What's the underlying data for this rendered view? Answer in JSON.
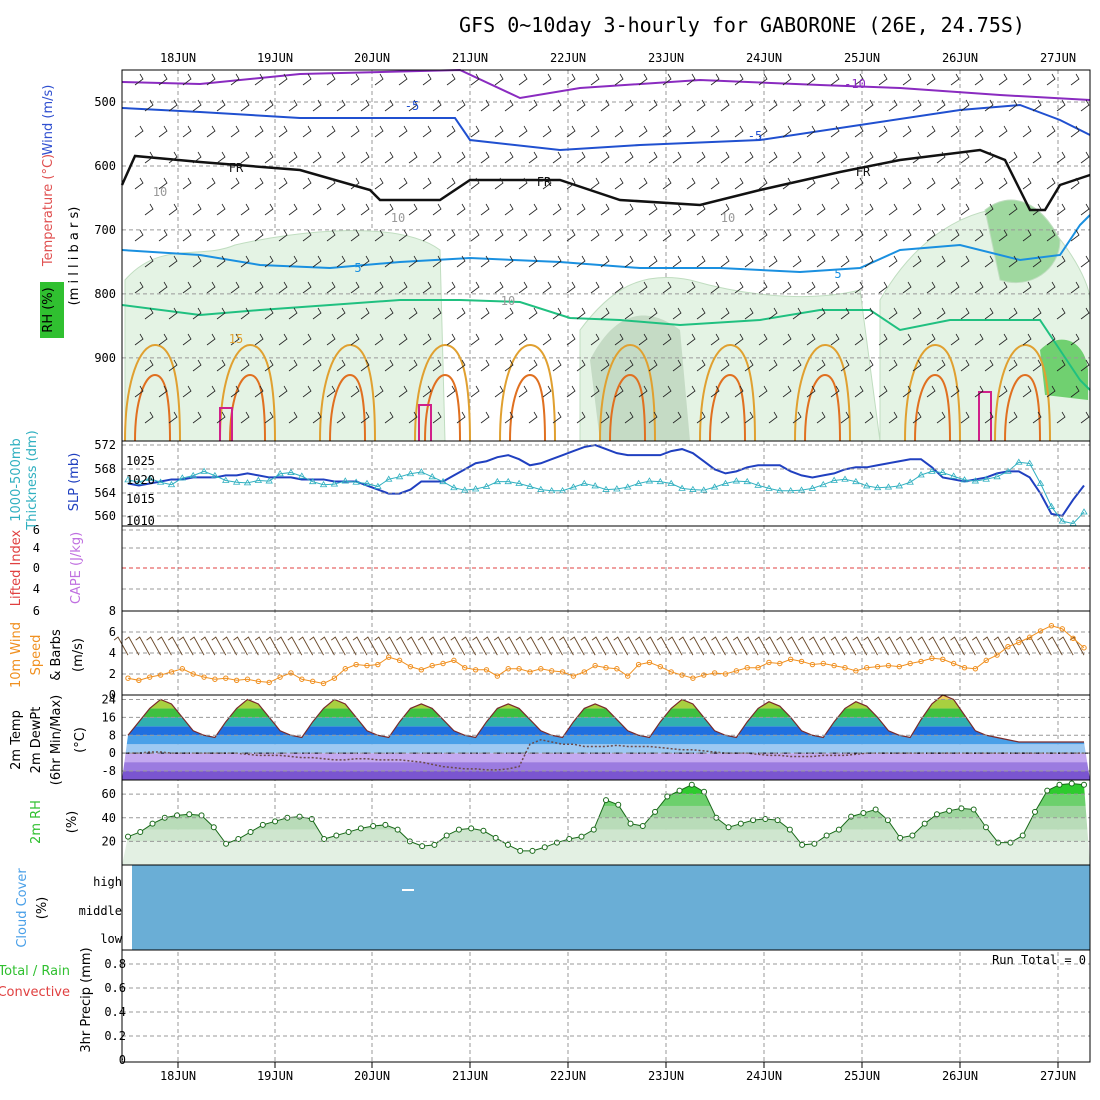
{
  "title": "GFS 0~10day 3-hourly for GABORONE (26E, 24.75S)",
  "date_labels": [
    "18JUN",
    "19JUN",
    "20JUN",
    "21JUN",
    "22JUN",
    "23JUN",
    "24JUN",
    "25JUN",
    "26JUN",
    "27JUN"
  ],
  "panel_labels": {
    "upper_wind": "Wind (m/s)",
    "upper_temp": "Temperature (°C)",
    "upper_rh": "RH (%)",
    "upper_units": "(m i l l i b a r s)",
    "thickness_1": "1000-500mb",
    "thickness_2": "Thickness (dm)",
    "slp": "SLP (mb)",
    "lifted": "Lifted Index",
    "cape": "CAPE (J/kg)",
    "wind10_1": "10m Wind",
    "wind10_2": "Speed",
    "wind10_3": "& Barbs",
    "wind10_units": "(m/s)",
    "temp_1": "2m Temp",
    "temp_2": "2m DewPt",
    "temp_3": "(6hr Min/Max)",
    "temp_units": "(°C)",
    "rh_1": "2m RH",
    "rh_units": "(%)",
    "cloud_1": "Cloud Cover",
    "cloud_units": "(%)",
    "precip_1": "Total / Rain",
    "precip_2": "Convective",
    "precip_3": "3hr Precip (mm)",
    "run_total": "Run Total = 0"
  },
  "colors": {
    "temp_label": "#e05050",
    "wind_label": "#3050d0",
    "rh_label": "#30c030",
    "thickness": "#30b0c0",
    "slp": "#2040c0",
    "lifted": "#e04040",
    "cape": "#c070e0",
    "wind10": "#f09020",
    "cloud": "#6aaed6",
    "precip_total": "#30c030",
    "precip_conv": "#e04040"
  },
  "chart_data": [
    {
      "type": "line",
      "name": "upper-air",
      "ylabel": "millibars",
      "yticks": [
        "500",
        "600",
        "700",
        "800",
        "900"
      ],
      "ylim": [
        1000,
        450
      ],
      "isotherm_labels": [
        "-10",
        "-5",
        "-5",
        "FR",
        "FR",
        "FR",
        "5",
        "5",
        "15",
        "10",
        "10",
        "10",
        "10"
      ]
    },
    {
      "type": "line",
      "name": "thickness-slp",
      "left_ticks": [
        "572",
        "568",
        "564",
        "560"
      ],
      "right_ticks": [
        "1025",
        "1020",
        "1015",
        "1010"
      ],
      "thickness": [
        566.6,
        566.2,
        566.8,
        566.2,
        565.8,
        566.9,
        567.3,
        568.0,
        567.3,
        566.5,
        566.2,
        566.1,
        566.5,
        566.4,
        567.6,
        567.8,
        567.2,
        566.3,
        565.8,
        565.9,
        566.4,
        566.2,
        566.0,
        565.5,
        566.7,
        567.1,
        567.6,
        567.9,
        567.1,
        566.3,
        565.3,
        564.9,
        565.1,
        565.5,
        566.3,
        566.3,
        566.0,
        565.5,
        565.0,
        564.8,
        564.8,
        565.4,
        566.0,
        565.6,
        565.0,
        565.1,
        565.4,
        566.0,
        566.4,
        566.3,
        566.0,
        565.2,
        565.0,
        564.9,
        565.4,
        566.0,
        566.4,
        566.3,
        565.7,
        565.2,
        564.8,
        564.8,
        564.9,
        565.2,
        565.8,
        566.5,
        566.7,
        566.3,
        565.6,
        565.3,
        565.4,
        565.6,
        566.2,
        567.4,
        568.0,
        567.8,
        567.2,
        566.6,
        566.4,
        566.7,
        567.1,
        568.0,
        569.5,
        569.3,
        566.0,
        562.2,
        559.8,
        559.4,
        561.3
      ],
      "slp": [
        1018.5,
        1018.0,
        1018.5,
        1019.0,
        1019.5,
        1019.5,
        1020.0,
        1020.0,
        1020.0,
        1020.5,
        1020.5,
        1021.0,
        1020.5,
        1020.0,
        1020.0,
        1020.0,
        1019.5,
        1019.5,
        1019.5,
        1019.0,
        1019.0,
        1019.0,
        1018.0,
        1017.0,
        1016.0,
        1016.0,
        1017.0,
        1019.0,
        1019.0,
        1019.0,
        1020.5,
        1022.0,
        1023.5,
        1024.0,
        1025.0,
        1025.5,
        1024.5,
        1023.0,
        1023.5,
        1024.5,
        1025.5,
        1026.5,
        1027.5,
        1028.0,
        1027.0,
        1026.0,
        1025.5,
        1025.5,
        1025.5,
        1025.5,
        1026.5,
        1027.0,
        1026.0,
        1024.0,
        1022.0,
        1021.0,
        1021.5,
        1022.5,
        1023.0,
        1023.0,
        1023.0,
        1021.5,
        1020.5,
        1020.0,
        1020.5,
        1021.0,
        1022.0,
        1022.5,
        1022.5,
        1023.0,
        1023.5,
        1024.0,
        1024.5,
        1024.5,
        1022.5,
        1020.0,
        1019.5,
        1019.0,
        1019.5,
        1020.0,
        1021.0,
        1021.5,
        1021.5,
        1020.0,
        1016.0,
        1011.0,
        1010.5,
        1014.5,
        1018.0
      ]
    },
    {
      "type": "line",
      "name": "lifted-cape",
      "yticks": [
        "6",
        "4",
        "0",
        "4",
        "6"
      ],
      "lifted_index": [],
      "cape": []
    },
    {
      "type": "line",
      "name": "10m-wind",
      "yticks": [
        "8",
        "6",
        "4",
        "2",
        "0"
      ],
      "ylim": [
        0,
        8
      ],
      "speed": [
        1.6,
        1.4,
        1.7,
        1.9,
        2.2,
        2.5,
        2.0,
        1.7,
        1.5,
        1.6,
        1.4,
        1.5,
        1.3,
        1.2,
        1.7,
        2.1,
        1.5,
        1.3,
        1.1,
        1.6,
        2.5,
        2.9,
        2.8,
        2.9,
        3.6,
        3.3,
        2.7,
        2.4,
        2.8,
        3.0,
        3.3,
        2.6,
        2.4,
        2.4,
        1.8,
        2.5,
        2.5,
        2.2,
        2.5,
        2.3,
        2.2,
        1.8,
        2.2,
        2.8,
        2.6,
        2.5,
        1.8,
        2.9,
        3.1,
        2.7,
        2.2,
        1.9,
        1.6,
        1.9,
        2.1,
        2.0,
        2.3,
        2.6,
        2.6,
        3.1,
        3.0,
        3.4,
        3.2,
        2.9,
        3.0,
        2.8,
        2.6,
        2.3,
        2.6,
        2.7,
        2.8,
        2.7,
        3.0,
        3.2,
        3.5,
        3.4,
        3.0,
        2.6,
        2.5,
        3.3,
        3.8,
        4.6,
        5.0,
        5.5,
        6.1,
        6.6,
        6.3,
        5.4,
        4.5
      ]
    },
    {
      "type": "area",
      "name": "2m-temp",
      "yticks": [
        "24",
        "16",
        "8",
        "0",
        "-8"
      ],
      "ylim": [
        -12,
        26
      ],
      "temp": [
        8,
        14,
        20,
        24,
        22,
        16,
        10,
        8,
        7,
        14,
        20,
        24,
        22,
        16,
        10,
        8,
        7,
        14,
        20,
        24,
        22,
        16,
        10,
        8,
        7,
        14,
        20,
        22,
        20,
        15,
        10,
        8,
        7,
        14,
        20,
        22,
        20,
        15,
        10,
        8,
        7,
        14,
        20,
        22,
        20,
        15,
        10,
        8,
        7,
        14,
        20,
        24,
        22,
        16,
        10,
        8,
        7,
        14,
        20,
        23,
        21,
        16,
        10,
        8,
        7,
        14,
        20,
        23,
        21,
        16,
        10,
        8,
        7,
        15,
        22,
        26,
        24,
        17,
        10,
        8,
        7,
        6,
        5,
        5,
        5,
        5,
        5,
        5,
        5
      ],
      "dewpoint": [
        0,
        0,
        0.5,
        0.5,
        0,
        0,
        0,
        0,
        0,
        0,
        0,
        -0.5,
        -1,
        -1,
        -1,
        -1.5,
        -2,
        -2,
        -2.5,
        -3,
        -3,
        -2.5,
        -2.5,
        -3,
        -3,
        -3,
        -3.5,
        -4,
        -5,
        -6,
        -6.5,
        -7,
        -7,
        -7.5,
        -7.5,
        -7,
        -6,
        4,
        6,
        5,
        4,
        4,
        3,
        3,
        3,
        3.5,
        3,
        3,
        3,
        2.5,
        2,
        1.5,
        1.5,
        1,
        0.5,
        0,
        0,
        0,
        -0.5,
        -1,
        -1,
        -1.5,
        -1.5,
        -1.5,
        -1,
        -1,
        -1,
        -0.5,
        0,
        0,
        0,
        0,
        0,
        0,
        0,
        0,
        0,
        0,
        0,
        0,
        0,
        0,
        0,
        0,
        0,
        0,
        0,
        0,
        0
      ]
    },
    {
      "type": "area",
      "name": "2m-rh",
      "yticks": [
        "60",
        "40",
        "20"
      ],
      "ylim": [
        0,
        72
      ],
      "rh": [
        24,
        28,
        35,
        40,
        42,
        43,
        42,
        32,
        18,
        22,
        28,
        34,
        37,
        40,
        41,
        39,
        22,
        25,
        28,
        31,
        33,
        34,
        30,
        20,
        16,
        17,
        25,
        30,
        31,
        29,
        23,
        17,
        12,
        12,
        15,
        19,
        22,
        24,
        30,
        55,
        51,
        35,
        33,
        45,
        58,
        63,
        68,
        62,
        40,
        32,
        35,
        38,
        39,
        38,
        30,
        17,
        18,
        25,
        30,
        41,
        44,
        47,
        38,
        23,
        25,
        35,
        43,
        46,
        48,
        47,
        32,
        19,
        19,
        25,
        45,
        63,
        68,
        69,
        68
      ]
    },
    {
      "type": "heatmap",
      "name": "cloud-cover",
      "yticks": [
        "high",
        "middle",
        "low"
      ]
    },
    {
      "type": "bar",
      "name": "precip",
      "yticks": [
        "0.8",
        "0.6",
        "0.4",
        "0.2",
        "0"
      ],
      "ylim": [
        0,
        0.9
      ],
      "values": []
    }
  ]
}
